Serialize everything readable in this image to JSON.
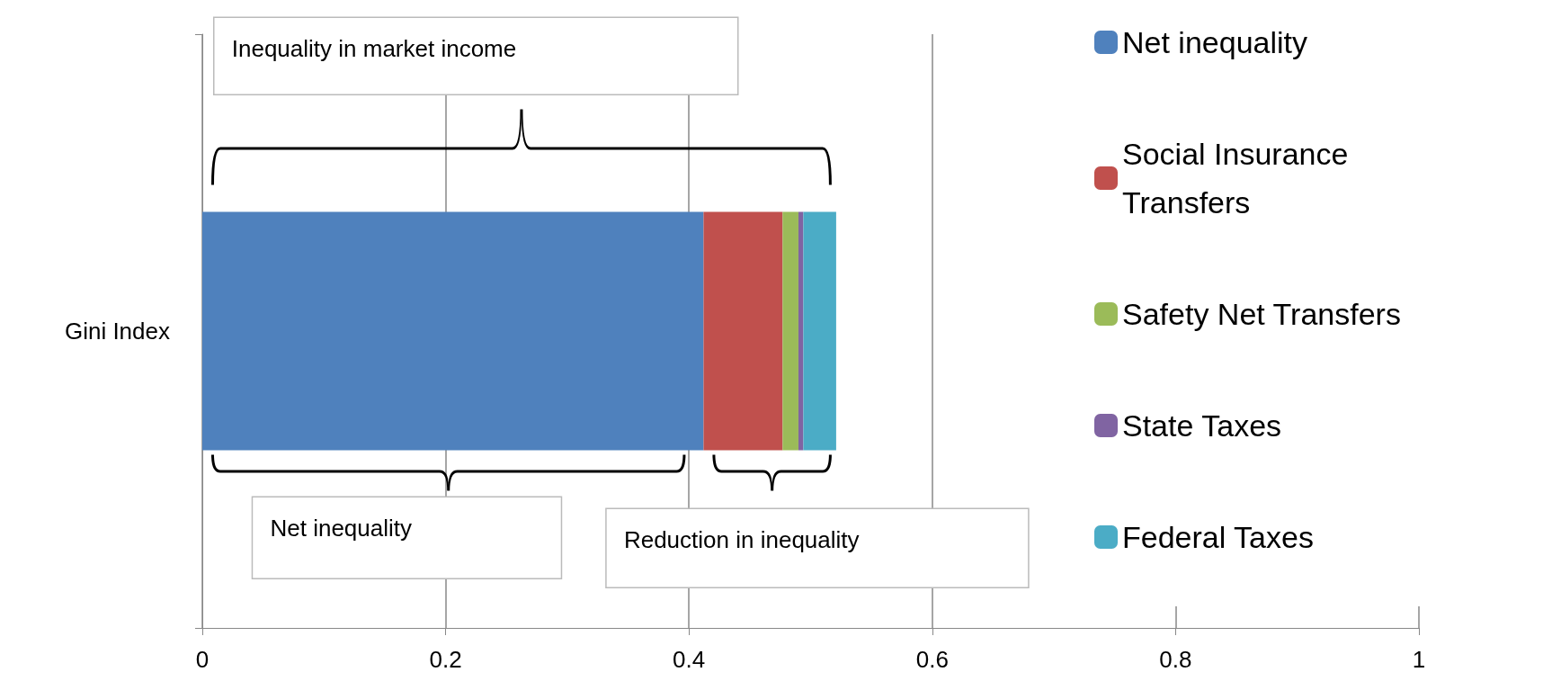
{
  "chart_data": {
    "type": "bar",
    "orientation": "horizontal",
    "stacked": true,
    "categories": [
      "Gini Index"
    ],
    "series": [
      {
        "name": "Net inequality",
        "color": "#4f81bd",
        "values": [
          0.412
        ]
      },
      {
        "name": "Social Insurance Transfers",
        "color": "#c0504d",
        "values": [
          0.065
        ]
      },
      {
        "name": "Safety Net Transfers",
        "color": "#9bbb59",
        "values": [
          0.013
        ]
      },
      {
        "name": "State Taxes",
        "color": "#8064a2",
        "values": [
          0.004
        ]
      },
      {
        "name": "Federal Taxes",
        "color": "#4bacc6",
        "values": [
          0.027
        ]
      }
    ],
    "xlim": [
      0,
      1
    ],
    "xticks": [
      0,
      0.2,
      0.4,
      0.6,
      0.8,
      1
    ],
    "grid": "x",
    "legend": "right",
    "annotations": [
      "Inequality in market income",
      "Net inequality",
      "Reduction in inequality"
    ]
  }
}
